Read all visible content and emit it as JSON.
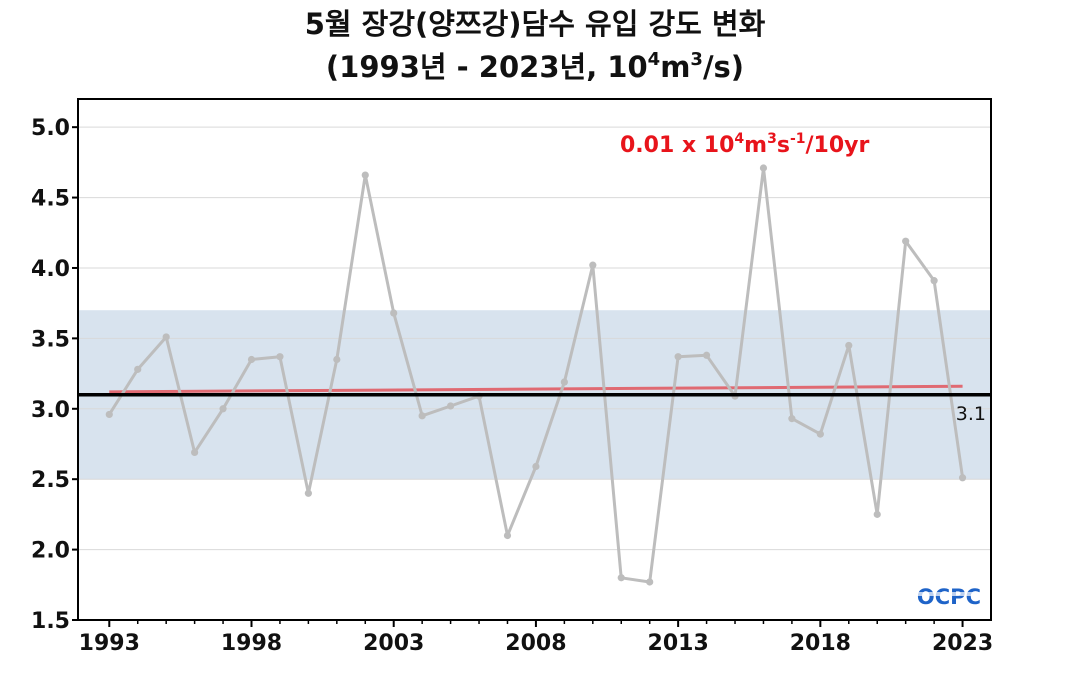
{
  "chart_data": {
    "type": "line",
    "title_line1": "5월 장강(양쯔강)담수 유입 강도 변화",
    "title_line2_prefix": "(1993년 - 2023년, 10",
    "title_line2_sup1": "4",
    "title_line2_mid": "m",
    "title_line2_sup2": "3",
    "title_line2_suffix": "/s)",
    "x": [
      1993,
      1994,
      1995,
      1996,
      1997,
      1998,
      1999,
      2000,
      2001,
      2002,
      2003,
      2004,
      2005,
      2006,
      2007,
      2008,
      2009,
      2010,
      2011,
      2012,
      2013,
      2014,
      2015,
      2016,
      2017,
      2018,
      2019,
      2020,
      2021,
      2022,
      2023
    ],
    "series": [
      {
        "values": [
          2.96,
          3.28,
          3.51,
          2.69,
          3.0,
          3.35,
          3.37,
          2.4,
          3.35,
          4.66,
          3.68,
          2.95,
          3.02,
          3.09,
          2.1,
          2.59,
          3.19,
          4.02,
          1.8,
          1.77,
          3.37,
          3.38,
          3.09,
          4.71,
          2.93,
          2.82,
          3.45,
          2.25,
          4.19,
          3.91,
          2.51
        ],
        "color": "#bdbdbd"
      }
    ],
    "xlim": [
      1991.9,
      2024.0
    ],
    "ylim": [
      1.5,
      5.2
    ],
    "xticks": [
      1993,
      1998,
      2003,
      2008,
      2013,
      2018,
      2023
    ],
    "yticks": [
      "1.5",
      "2.0",
      "2.5",
      "3.0",
      "3.5",
      "4.0",
      "4.5",
      "5.0"
    ],
    "grid": true,
    "mean": {
      "value": 3.1,
      "label": "3.1",
      "color": "#000000"
    },
    "std_band": {
      "lower": 2.5,
      "upper": 3.7,
      "color": "#d8e3ee"
    },
    "trend": {
      "start": 3.12,
      "end": 3.16,
      "color": "#e06a72"
    },
    "trend_label": {
      "prefix": "0.01 x 10",
      "sup1": "4",
      "m": "m",
      "sup2": "3",
      "s": "s",
      "sup3": "-1",
      "suffix": "/10yr",
      "color": "#e8141b"
    },
    "logo": {
      "text": "OCPC",
      "color": "#1e63c8"
    }
  }
}
